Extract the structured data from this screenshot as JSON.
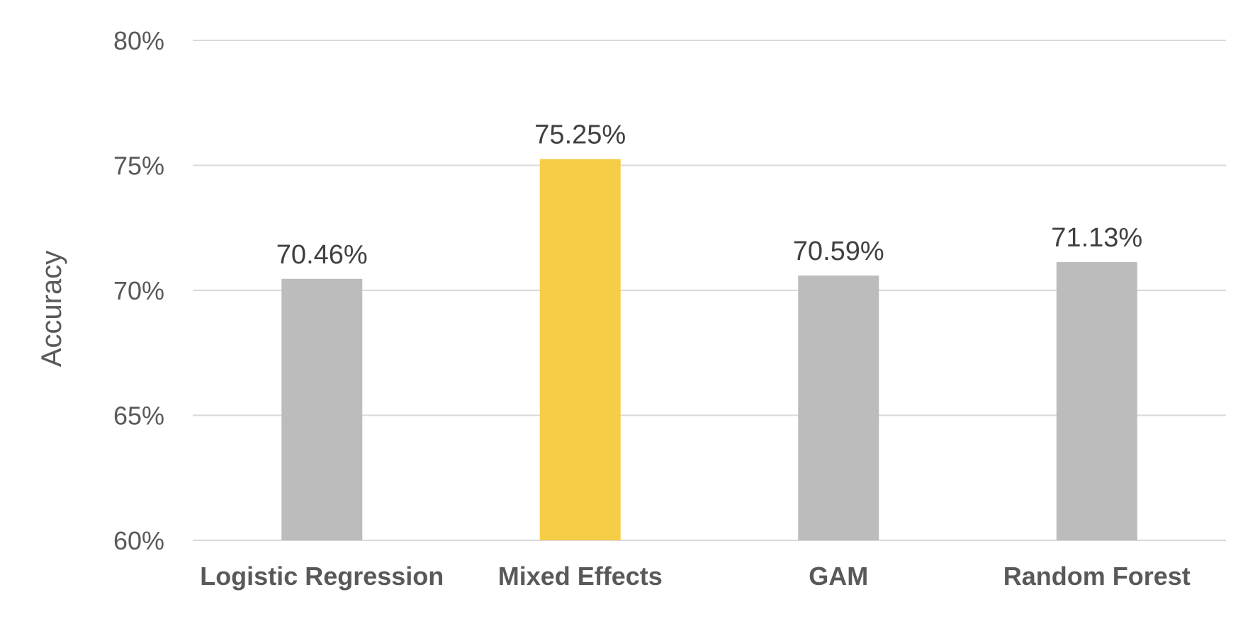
{
  "chart_data": {
    "type": "bar",
    "categories": [
      "Logistic Regression",
      "Mixed Effects",
      "GAM",
      "Random Forest"
    ],
    "values": [
      70.46,
      75.25,
      70.59,
      71.13
    ],
    "data_labels": [
      "70.46%",
      "75.25%",
      "70.59%",
      "71.13%"
    ],
    "title": "",
    "xlabel": "",
    "ylabel": "Accuracy",
    "ylim": [
      60,
      80
    ],
    "yticks": [
      60,
      65,
      70,
      75,
      80
    ],
    "ytick_labels": [
      "60%",
      "65%",
      "70%",
      "75%",
      "80%"
    ],
    "grid": true,
    "legend": "none",
    "colors": {
      "default_bar": "#bcbcbc",
      "highlight_bar": "#f5cd47",
      "gridline": "#d9d9d9",
      "text": "#595959"
    },
    "highlight_index": 1
  }
}
